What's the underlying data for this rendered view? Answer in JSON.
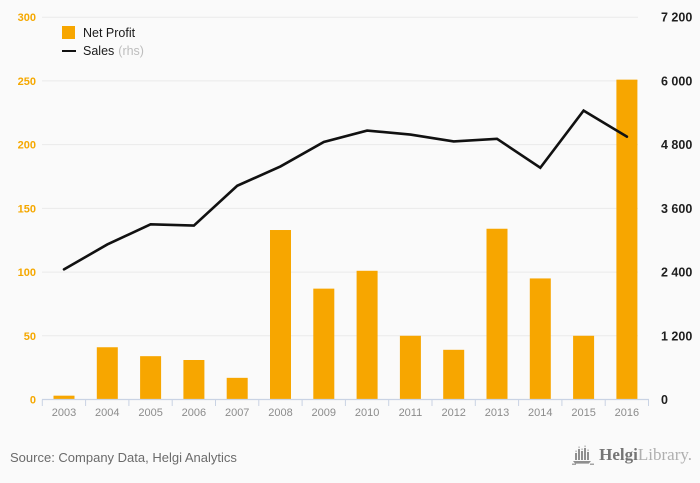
{
  "legend": {
    "net_profit_label": "Net Profit",
    "sales_label": "Sales",
    "sales_suffix": "(rhs)"
  },
  "footer": {
    "source": "Source: Company Data, Helgi Analytics",
    "logo_bold": "Helgi",
    "logo_light": "Library."
  },
  "chart_data": {
    "type": "bar+line combo",
    "categories": [
      "2003",
      "2004",
      "2005",
      "2006",
      "2007",
      "2008",
      "2009",
      "2010",
      "2011",
      "2012",
      "2013",
      "2014",
      "2015",
      "2016"
    ],
    "series": [
      {
        "name": "Net Profit",
        "type": "bar",
        "axis": "left",
        "values": [
          3,
          41,
          34,
          31,
          17,
          133,
          87,
          101,
          50,
          39,
          134,
          95,
          50,
          251
        ]
      },
      {
        "name": "Sales",
        "type": "line",
        "axis": "right",
        "values": [
          2450,
          2920,
          3300,
          3275,
          4025,
          4390,
          4850,
          5065,
          4990,
          4860,
          4910,
          4365,
          5440,
          4950
        ]
      }
    ],
    "left_axis": {
      "range": [
        0,
        300
      ],
      "ticks": [
        0,
        50,
        100,
        150,
        200,
        250,
        300
      ],
      "tick_labels": [
        "0",
        "50",
        "100",
        "150",
        "200",
        "250",
        "300"
      ]
    },
    "right_axis": {
      "range": [
        0,
        7200
      ],
      "tick_labels": [
        "0",
        "1 200",
        "2 400",
        "3 600",
        "4 800",
        "6 000",
        "7 200"
      ]
    },
    "grid": true,
    "legend_position": "top-left",
    "colors": {
      "bar": "#F7A600",
      "line": "#111111",
      "left_axis_label": "#F5A800",
      "right_axis_label": "#1F1F1F",
      "x_axis_label": "#8C8C8C",
      "grid": "#EAEAEA",
      "axis_line": "#C9D3E4",
      "background": "#FAFAFA"
    }
  }
}
